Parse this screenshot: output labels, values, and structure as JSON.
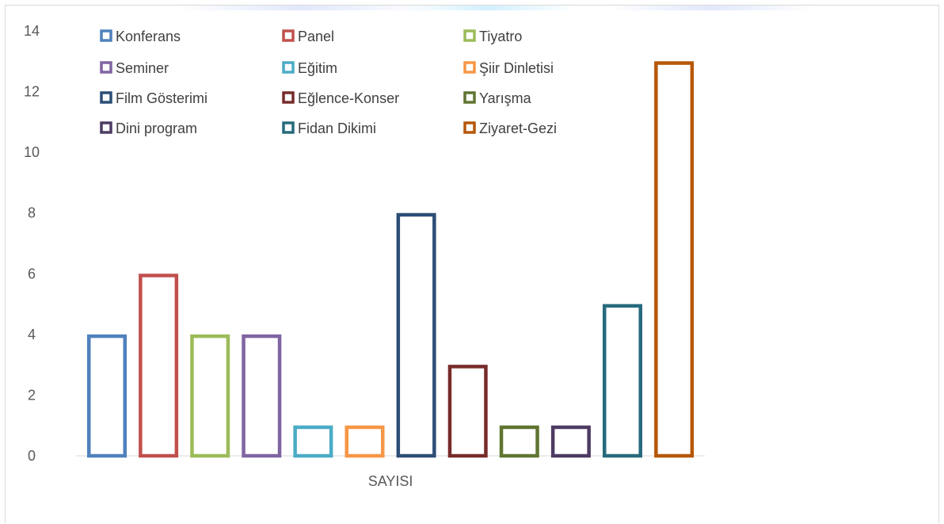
{
  "chart_data": {
    "type": "bar",
    "categories": [
      "SAYISI"
    ],
    "series": [
      {
        "name": "Konferans",
        "values": [
          4
        ],
        "color": "#4f81bd"
      },
      {
        "name": "Panel",
        "values": [
          6
        ],
        "color": "#c0504d"
      },
      {
        "name": "Tiyatro",
        "values": [
          4
        ],
        "color": "#9bbb59"
      },
      {
        "name": "Seminer",
        "values": [
          4
        ],
        "color": "#8064a2"
      },
      {
        "name": "Eğitim",
        "values": [
          1
        ],
        "color": "#4bacc6"
      },
      {
        "name": "Şiir Dinletisi",
        "values": [
          1
        ],
        "color": "#f79646"
      },
      {
        "name": "Film Gösterimi",
        "values": [
          8
        ],
        "color": "#2c4d75"
      },
      {
        "name": "Eğlence-Konser",
        "values": [
          3
        ],
        "color": "#772c2a"
      },
      {
        "name": "Yarışma",
        "values": [
          1
        ],
        "color": "#5f7530"
      },
      {
        "name": "Dini program",
        "values": [
          1
        ],
        "color": "#4d3b62"
      },
      {
        "name": "Fidan Dikimi",
        "values": [
          5
        ],
        "color": "#276a7c"
      },
      {
        "name": "Ziyaret-Gezi",
        "values": [
          13
        ],
        "color": "#b65708"
      }
    ],
    "y_ticks": [
      "0",
      "2",
      "4",
      "6",
      "8",
      "10",
      "12",
      "14"
    ],
    "ylim": [
      0,
      14
    ],
    "grid": false,
    "legend_position": "top",
    "bar_fill": "none",
    "title": "",
    "xlabel": "",
    "ylabel": ""
  }
}
